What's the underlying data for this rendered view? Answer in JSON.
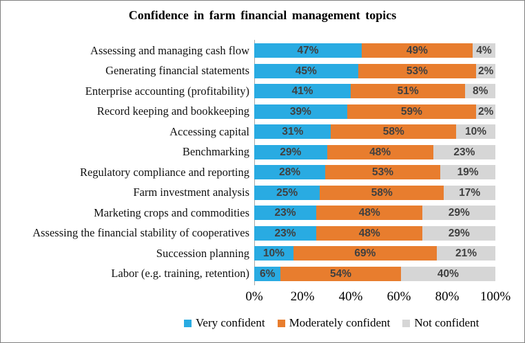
{
  "title": "Confidence in farm financial management topics",
  "chart_data": {
    "type": "bar",
    "variant": "horizontal-100pct-stacked",
    "title": "Confidence in farm financial management topics",
    "categories": [
      "Assessing and managing cash flow",
      "Generating financial statements",
      "Enterprise accounting (profitability)",
      "Record keeping and bookkeeping",
      "Accessing capital",
      "Benchmarking",
      "Regulatory compliance and reporting",
      "Farm investment analysis",
      "Marketing crops and commodities",
      "Assessing the financial stability of cooperatives",
      "Succession planning",
      "Labor (e.g. training, retention)"
    ],
    "series": [
      {
        "name": "Very confident",
        "color": "#29ABE2",
        "values": [
          47,
          45,
          41,
          39,
          31,
          29,
          28,
          25,
          23,
          23,
          10,
          6
        ]
      },
      {
        "name": "Moderately confident",
        "color": "#E87D2E",
        "values": [
          49,
          53,
          51,
          59,
          58,
          48,
          53,
          58,
          48,
          48,
          69,
          54
        ]
      },
      {
        "name": "Not confident",
        "color": "#D6D6D6",
        "values": [
          4,
          2,
          8,
          2,
          10,
          23,
          19,
          17,
          29,
          29,
          21,
          40
        ]
      }
    ],
    "x_ticks": [
      0,
      20,
      40,
      60,
      80,
      100
    ],
    "x_tick_labels": [
      "0%",
      "20%",
      "40%",
      "60%",
      "80%",
      "100%"
    ],
    "xlim": [
      0,
      100
    ],
    "grid": false,
    "legend_position": "bottom",
    "data_label_format": "{value}%",
    "data_label_color": "#404040",
    "axis_line_color": "#A6A6A6",
    "frame_border_color": "#7F7F7F",
    "background_color": "#FFFFFF"
  }
}
